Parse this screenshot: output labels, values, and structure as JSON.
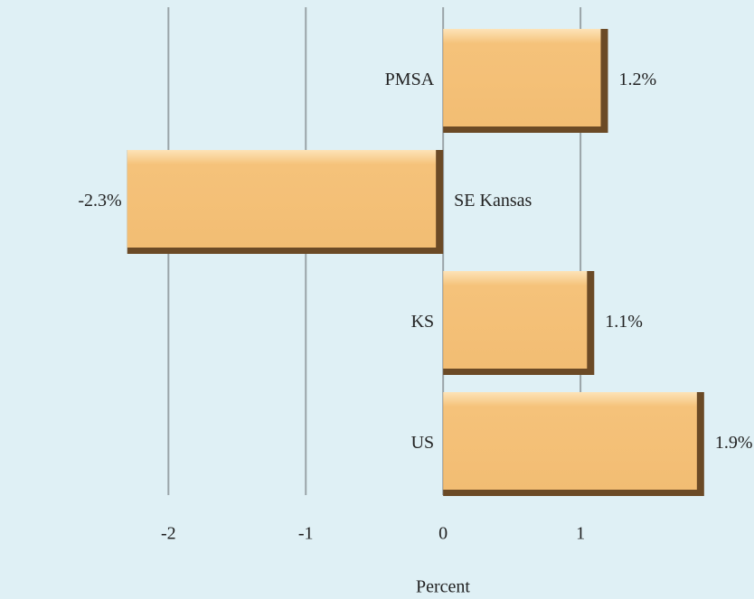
{
  "chart_data": {
    "type": "bar",
    "orientation": "horizontal",
    "categories": [
      "PMSA",
      "SE Kansas",
      "KS",
      "US"
    ],
    "values": [
      1.2,
      -2.3,
      1.1,
      1.9
    ],
    "value_labels": [
      "1.2%",
      "-2.3%",
      "1.1%",
      "1.9%"
    ],
    "color": "#f5c27a",
    "xlabel": "Percent",
    "xlim": [
      -3.2,
      2.25
    ],
    "xticks": [
      -2,
      -1,
      0,
      1
    ],
    "grid": true
  }
}
